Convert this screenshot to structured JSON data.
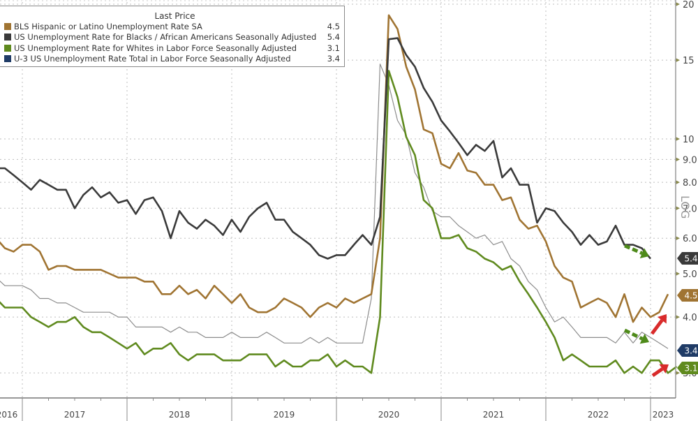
{
  "chart_data": {
    "type": "line",
    "title": "",
    "legend_title": "Last Price",
    "legend_position": "top-left",
    "xlabel": "",
    "ylabel": "",
    "y_scale": "log",
    "ylim": [
      2.9,
      20
    ],
    "y_ticks": [
      "20",
      "15",
      "10",
      "9.0",
      "8.0",
      "7.0",
      "6.0",
      "5.0",
      "4.0",
      "3.0"
    ],
    "y_tick_values": [
      20,
      15,
      10,
      9,
      8,
      7,
      6,
      5,
      4,
      3
    ],
    "y_axis_side": "right",
    "y_axis_note": "LOG",
    "x_ticks": [
      "2016",
      "2017",
      "2018",
      "2019",
      "2020",
      "2021",
      "2022",
      "2023"
    ],
    "grid": true,
    "x_start": "2016-10",
    "x_end": "2023-01",
    "x_frequency": "monthly",
    "series": [
      {
        "name": "BLS Hispanic or Latino Unemployment Rate SA",
        "last": "4.5",
        "color": "#a07432",
        "values": [
          6.0,
          5.7,
          5.6,
          5.8,
          5.8,
          5.6,
          5.1,
          5.2,
          5.2,
          5.1,
          5.1,
          5.1,
          5.1,
          5.0,
          4.9,
          4.9,
          4.9,
          4.8,
          4.8,
          4.5,
          4.5,
          4.7,
          4.5,
          4.6,
          4.4,
          4.7,
          4.5,
          4.3,
          4.5,
          4.2,
          4.1,
          4.1,
          4.2,
          4.4,
          4.3,
          4.2,
          4.0,
          4.2,
          4.3,
          4.2,
          4.4,
          4.3,
          4.4,
          4.5,
          6.0,
          18.9,
          17.6,
          14.5,
          12.9,
          10.5,
          10.3,
          8.8,
          8.6,
          9.3,
          8.5,
          8.4,
          7.9,
          7.9,
          7.3,
          7.4,
          6.6,
          6.3,
          6.4,
          5.9,
          5.2,
          4.9,
          4.8,
          4.2,
          4.3,
          4.4,
          4.3,
          4.0,
          4.5,
          3.9,
          4.2,
          4.0,
          4.1,
          4.5
        ]
      },
      {
        "name": "US Unemployment Rate for Blacks / African Americans Seasonally Adjusted",
        "last": "5.4",
        "color": "#3a3a3a",
        "values": [
          8.6,
          8.6,
          8.3,
          8.0,
          7.7,
          8.1,
          7.9,
          7.7,
          7.7,
          7.0,
          7.5,
          7.8,
          7.4,
          7.6,
          7.2,
          7.3,
          6.8,
          7.3,
          7.4,
          6.9,
          6.0,
          6.9,
          6.5,
          6.3,
          6.6,
          6.4,
          6.1,
          6.6,
          6.2,
          6.7,
          7.0,
          7.2,
          6.6,
          6.6,
          6.2,
          6.0,
          5.8,
          5.5,
          5.4,
          5.5,
          5.5,
          5.8,
          6.1,
          5.8,
          6.7,
          16.7,
          16.8,
          15.4,
          14.5,
          13.0,
          12.1,
          11.0,
          10.4,
          9.8,
          9.2,
          9.7,
          9.4,
          9.9,
          8.2,
          8.6,
          7.9,
          7.9,
          6.5,
          7.0,
          6.9,
          6.5,
          6.2,
          5.8,
          6.1,
          5.8,
          5.9,
          6.4,
          5.8,
          5.8,
          5.7,
          5.4
        ]
      },
      {
        "name": "US Unemployment Rate for Whites in Labor Force Seasonally Adjusted",
        "last": "3.1",
        "color": "#5f8a1e",
        "values": [
          4.4,
          4.2,
          4.2,
          4.2,
          4.0,
          3.9,
          3.8,
          3.9,
          3.9,
          4.0,
          3.8,
          3.7,
          3.7,
          3.6,
          3.5,
          3.4,
          3.5,
          3.3,
          3.4,
          3.4,
          3.5,
          3.3,
          3.2,
          3.3,
          3.3,
          3.3,
          3.2,
          3.2,
          3.2,
          3.3,
          3.3,
          3.3,
          3.1,
          3.2,
          3.1,
          3.1,
          3.2,
          3.2,
          3.3,
          3.1,
          3.2,
          3.1,
          3.1,
          3.0,
          4.0,
          14.2,
          12.4,
          10.1,
          9.2,
          7.3,
          7.0,
          6.0,
          6.0,
          6.1,
          5.7,
          5.6,
          5.4,
          5.3,
          5.1,
          5.2,
          4.8,
          4.5,
          4.2,
          3.9,
          3.6,
          3.2,
          3.3,
          3.2,
          3.1,
          3.1,
          3.1,
          3.2,
          3.0,
          3.1,
          3.0,
          3.2,
          3.2,
          3.0,
          3.1
        ]
      },
      {
        "name": "U-3 US Unemployment Rate Total in Labor Force Seasonally Adjusted",
        "last": "3.4",
        "color": "#1f3b66",
        "line_color": "#8c8c8c",
        "values": [
          4.9,
          4.7,
          4.7,
          4.7,
          4.6,
          4.4,
          4.4,
          4.3,
          4.3,
          4.2,
          4.1,
          4.1,
          4.1,
          4.1,
          4.0,
          4.0,
          3.8,
          3.8,
          3.8,
          3.8,
          3.7,
          3.8,
          3.7,
          3.7,
          3.6,
          3.6,
          3.6,
          3.7,
          3.6,
          3.6,
          3.6,
          3.7,
          3.6,
          3.5,
          3.5,
          3.5,
          3.6,
          3.5,
          3.6,
          3.5,
          3.5,
          3.5,
          3.5,
          4.4,
          14.7,
          13.2,
          11.0,
          10.2,
          8.4,
          7.8,
          6.9,
          6.7,
          6.7,
          6.4,
          6.2,
          6.0,
          6.1,
          5.8,
          5.9,
          5.4,
          5.2,
          4.8,
          4.6,
          4.2,
          3.9,
          4.0,
          3.8,
          3.6,
          3.6,
          3.6,
          3.6,
          3.5,
          3.7,
          3.5,
          3.7,
          3.6,
          3.5,
          3.4
        ]
      }
    ],
    "annotations": [
      {
        "type": "arrow",
        "direction": "down-right",
        "style": "dashed",
        "color": "#4e8a1a",
        "near_series": "US Unemployment Rate for Blacks / African Americans Seasonally Adjusted"
      },
      {
        "type": "arrow",
        "direction": "up-right",
        "style": "solid",
        "color": "#d92b2b",
        "near_series": "BLS Hispanic or Latino Unemployment Rate SA"
      },
      {
        "type": "arrow",
        "direction": "down-right",
        "style": "dashed",
        "color": "#4e8a1a",
        "near_series": "U-3 US Unemployment Rate Total in Labor Force Seasonally Adjusted"
      },
      {
        "type": "arrow",
        "direction": "up-right",
        "style": "solid",
        "color": "#d92b2b",
        "near_series": "US Unemployment Rate for Whites in Labor Force Seasonally Adjusted"
      }
    ]
  }
}
